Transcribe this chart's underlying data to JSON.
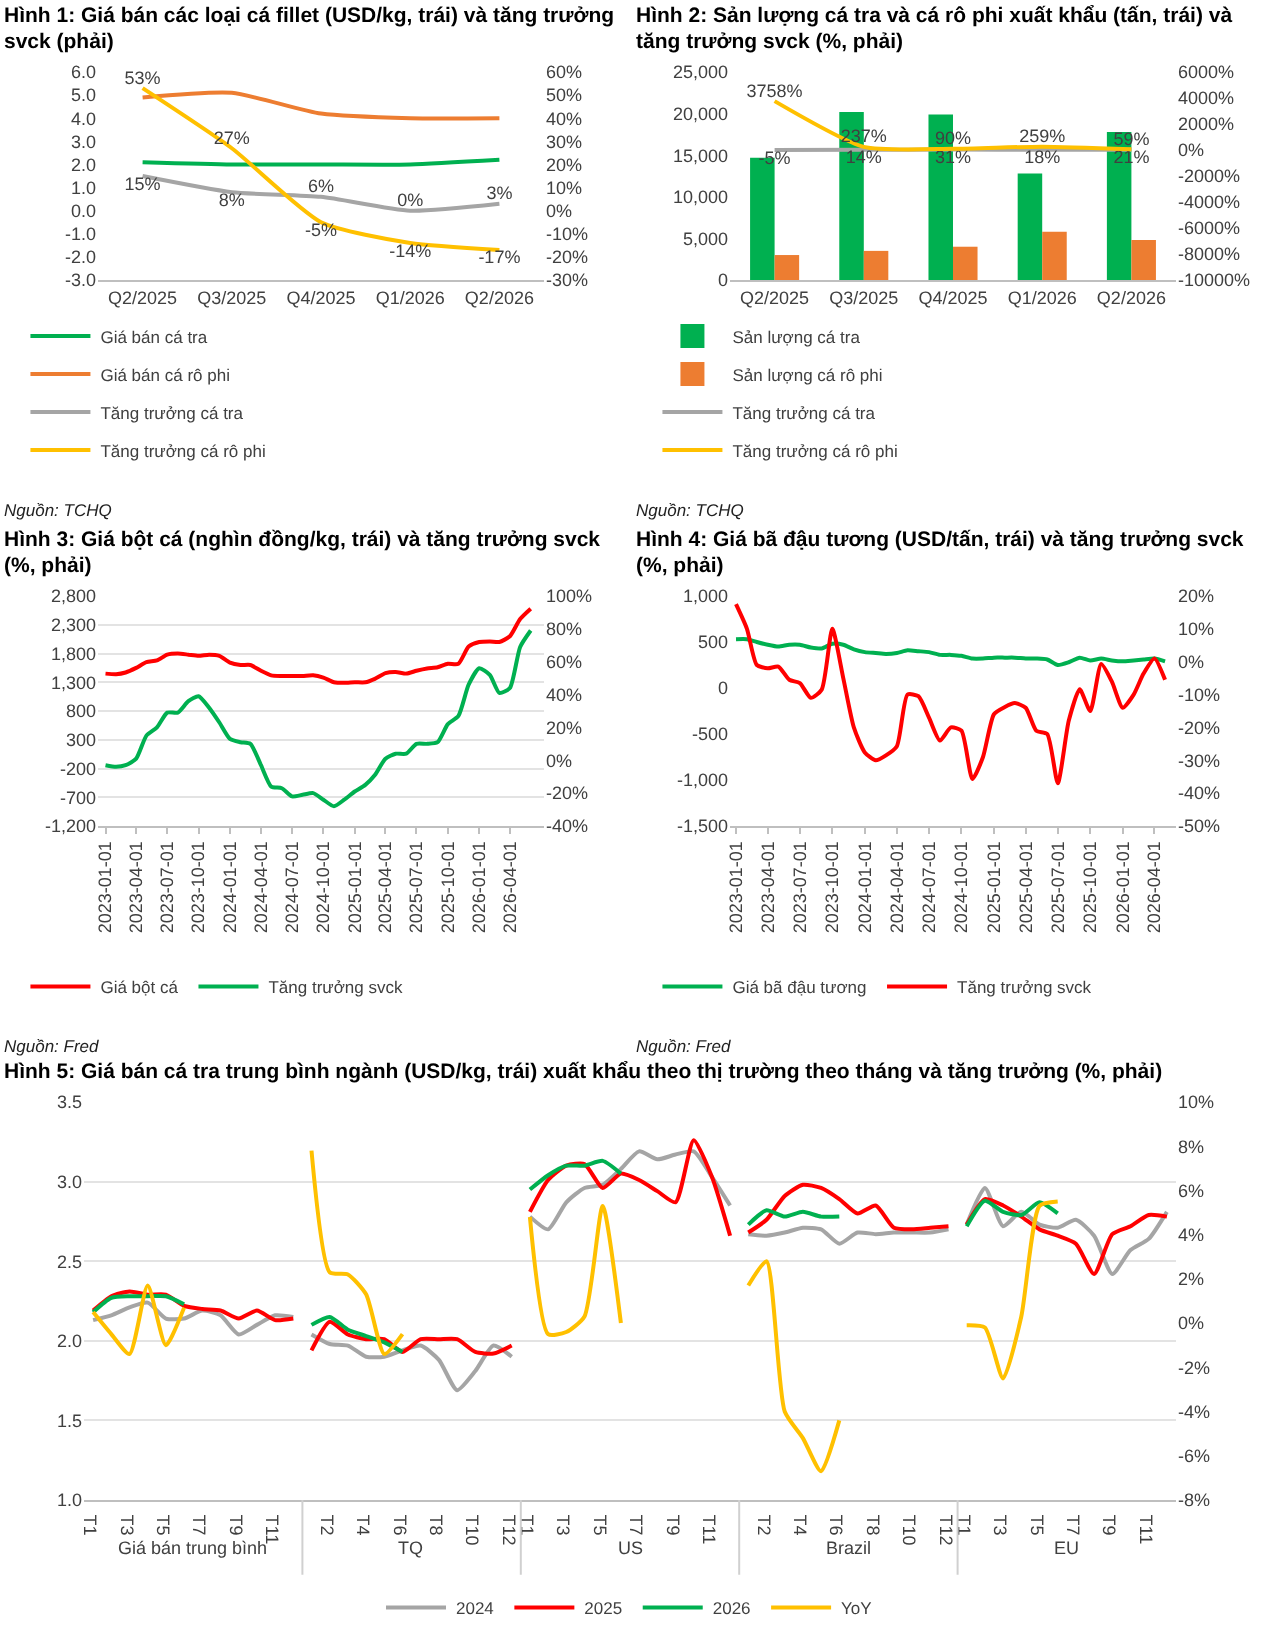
{
  "chart_data": [
    {
      "type": "line",
      "title": "Hình 1: Giá bán các loại cá fillet (USD/kg, trái) và tăng trưởng svck (phải)",
      "annotations": [
        "Nguồn: TCHQ"
      ],
      "categories": [
        "Q2/2025",
        "Q3/2025",
        "Q4/2025",
        "Q1/2026",
        "Q2/2026"
      ],
      "series": [
        {
          "name": "Giá bán cá tra",
          "color": "#00b050",
          "values": [
            2.1,
            2.0,
            2.0,
            2.0,
            2.2
          ]
        },
        {
          "name": "Giá bán cá rô phi",
          "color": "#ed7d31",
          "values": [
            4.9,
            5.1,
            4.2,
            4.0,
            4.0
          ]
        },
        {
          "name": "Tăng trưởng cá tra",
          "color": "#a5a5a5",
          "axis": "y2",
          "values": [
            15,
            8,
            6,
            0,
            3
          ],
          "value_labels": [
            "15%",
            "8%",
            "6%",
            "0%",
            "3%"
          ]
        },
        {
          "name": "Tăng trưởng cá rô phi",
          "color": "#ffc000",
          "axis": "y2",
          "values": [
            53,
            27,
            -5,
            -14,
            -17
          ],
          "value_labels": [
            "53%",
            "27%",
            "-5%",
            "-14%",
            "-17%"
          ]
        }
      ],
      "ylim": [
        -3,
        6
      ],
      "yticks": [
        {
          "value": -3,
          "label": "-3.0"
        },
        {
          "value": -2,
          "label": "-2.0"
        },
        {
          "value": -1,
          "label": "-1.0"
        },
        {
          "value": 0,
          "label": "0.0"
        },
        {
          "value": 1,
          "label": "1.0"
        },
        {
          "value": 2,
          "label": "2.0"
        },
        {
          "value": 3,
          "label": "3.0"
        },
        {
          "value": 4,
          "label": "4.0"
        },
        {
          "value": 5,
          "label": "5.0"
        },
        {
          "value": 6,
          "label": "6.0"
        }
      ],
      "y2lim": [
        -30,
        60
      ],
      "y2ticks": [
        {
          "value": -30,
          "label": "-30%"
        },
        {
          "value": -20,
          "label": "-20%"
        },
        {
          "value": -10,
          "label": "-10%"
        },
        {
          "value": 0,
          "label": "0%"
        },
        {
          "value": 10,
          "label": "10%"
        },
        {
          "value": 20,
          "label": "20%"
        },
        {
          "value": 30,
          "label": "30%"
        },
        {
          "value": 40,
          "label": "40%"
        },
        {
          "value": 50,
          "label": "50%"
        },
        {
          "value": 60,
          "label": "60%"
        }
      ],
      "legend": "bottom"
    },
    {
      "type": "bar",
      "title": "Hình 2: Sản lượng cá tra và cá rô phi xuất khẩu (tấn, trái) và tăng trưởng svck (%, phải)",
      "annotations": [
        "Nguồn: TCHQ"
      ],
      "categories": [
        "Q2/2025",
        "Q3/2025",
        "Q4/2025",
        "Q1/2026",
        "Q2/2026"
      ],
      "series": [
        {
          "name": "Sản lượng cá tra",
          "color": "#00b050",
          "values": [
            14700,
            20200,
            19900,
            12800,
            17800
          ]
        },
        {
          "name": "Sản lượng cá rô phi",
          "color": "#ed7d31",
          "values": [
            3000,
            3500,
            4000,
            5800,
            4800
          ]
        },
        {
          "name": "Tăng trưởng cá tra",
          "type": "line",
          "color": "#a5a5a5",
          "axis": "y2",
          "values": [
            -5,
            14,
            31,
            18,
            21
          ],
          "value_labels": [
            "-5%",
            "14%",
            "31%",
            "18%",
            "21%"
          ]
        },
        {
          "name": "Tăng trưởng cá rô phi",
          "type": "line",
          "color": "#ffc000",
          "axis": "y2",
          "values": [
            3758,
            237,
            90,
            259,
            59
          ],
          "value_labels": [
            "3758%",
            "237%",
            "90%",
            "259%",
            "59%"
          ]
        }
      ],
      "ylim": [
        0,
        25000
      ],
      "yticks": [
        0,
        {
          "value": 5000,
          "label": "5,000"
        },
        {
          "value": 10000,
          "label": "10,000"
        },
        {
          "value": 15000,
          "label": "15,000"
        },
        {
          "value": 20000,
          "label": "20,000"
        },
        {
          "value": 25000,
          "label": "25,000"
        }
      ],
      "y2lim": [
        -10000,
        6000
      ],
      "y2ticks": [
        {
          "value": -10000,
          "label": "-10000%"
        },
        {
          "value": -8000,
          "label": "-8000%"
        },
        {
          "value": -6000,
          "label": "-6000%"
        },
        {
          "value": -4000,
          "label": "-4000%"
        },
        {
          "value": -2000,
          "label": "-2000%"
        },
        {
          "value": 0,
          "label": "0%"
        },
        {
          "value": 2000,
          "label": "2000%"
        },
        {
          "value": 4000,
          "label": "4000%"
        },
        {
          "value": 6000,
          "label": "6000%"
        }
      ],
      "legend": "bottom"
    },
    {
      "type": "line",
      "title": "Hình 3: Giá bột cá (nghìn đồng/kg, trái) và tăng trưởng svck (%, phải)",
      "annotations": [
        "Nguồn: Fred"
      ],
      "x": [
        "2023-01",
        "2023-02",
        "2023-03",
        "2023-04",
        "2023-05",
        "2023-06",
        "2023-07",
        "2023-08",
        "2023-09",
        "2023-10",
        "2023-11",
        "2023-12",
        "2024-01",
        "2024-02",
        "2024-03",
        "2024-04",
        "2024-05",
        "2024-06",
        "2024-07",
        "2024-08",
        "2024-09",
        "2024-10",
        "2024-11",
        "2024-12",
        "2025-01",
        "2025-02",
        "2025-03",
        "2025-04",
        "2025-05",
        "2025-06",
        "2025-07",
        "2025-08",
        "2025-09",
        "2025-10",
        "2025-11",
        "2025-12",
        "2026-01",
        "2026-02",
        "2026-03",
        "2026-04",
        "2026-05",
        "2026-06"
      ],
      "series": [
        {
          "name": "Giá bột cá",
          "color": "#ff0000",
          "values": [
            1450,
            1440,
            1470,
            1550,
            1650,
            1680,
            1780,
            1800,
            1780,
            1760,
            1780,
            1760,
            1640,
            1600,
            1600,
            1500,
            1420,
            1410,
            1410,
            1410,
            1420,
            1380,
            1300,
            1290,
            1300,
            1300,
            1360,
            1460,
            1480,
            1450,
            1500,
            1540,
            1560,
            1620,
            1620,
            1920,
            2000,
            2010,
            2000,
            2100,
            2400,
            2580
          ]
        },
        {
          "name": "Tăng trưởng svck",
          "color": "#00b050",
          "axis": "y2",
          "values": [
            -3,
            -4,
            -3,
            1,
            15,
            20,
            29,
            29,
            36,
            39,
            32,
            23,
            13,
            11,
            10,
            -3,
            -16,
            -17,
            -22,
            -21,
            -20,
            -24,
            -28,
            -24,
            -19,
            -15,
            -9,
            1,
            4,
            4,
            10,
            10,
            11,
            22,
            27,
            46,
            56,
            52,
            41,
            44,
            69,
            79
          ]
        }
      ],
      "xlim": [
        "2022-12-10",
        "2026-07-10"
      ],
      "xticks": [
        "2023-01-01",
        "2023-04-01",
        "2023-07-01",
        "2023-10-01",
        "2024-01-01",
        "2024-04-01",
        "2024-07-01",
        "2024-10-01",
        "2025-01-01",
        "2025-04-01",
        "2025-07-01",
        "2025-10-01",
        "2026-01-01",
        "2026-04-01"
      ],
      "ylim": [
        -1200,
        2800
      ],
      "yticks": [
        {
          "value": -1200,
          "label": "-1,200"
        },
        -700,
        -200,
        300,
        800,
        {
          "value": 1300,
          "label": "1,300"
        },
        {
          "value": 1800,
          "label": "1,800"
        },
        {
          "value": 2300,
          "label": "2,300"
        },
        {
          "value": 2800,
          "label": "2,800"
        }
      ],
      "y2lim": [
        -40,
        100
      ],
      "y2ticks": [
        {
          "value": -40,
          "label": "-40%"
        },
        {
          "value": -20,
          "label": "-20%"
        },
        {
          "value": 0,
          "label": "0%"
        },
        {
          "value": 20,
          "label": "20%"
        },
        {
          "value": 40,
          "label": "40%"
        },
        {
          "value": 60,
          "label": "60%"
        },
        {
          "value": 80,
          "label": "80%"
        },
        {
          "value": 100,
          "label": "100%"
        }
      ],
      "grid": "y",
      "legend": "bottom"
    },
    {
      "type": "line",
      "title": "Hình 4: Giá bã đậu tương (USD/tấn, trái) và tăng trưởng svck (%, phải)",
      "annotations": [
        "Nguồn: Fred"
      ],
      "x": [
        "2023-01",
        "2023-02",
        "2023-03",
        "2023-04",
        "2023-05",
        "2023-06",
        "2023-07",
        "2023-08",
        "2023-09",
        "2023-10",
        "2023-11",
        "2023-12",
        "2024-01",
        "2024-02",
        "2024-03",
        "2024-04",
        "2024-05",
        "2024-06",
        "2024-07",
        "2024-08",
        "2024-09",
        "2024-10",
        "2024-11",
        "2024-12",
        "2025-01",
        "2025-02",
        "2025-03",
        "2025-04",
        "2025-05",
        "2025-06",
        "2025-07",
        "2025-08",
        "2025-09",
        "2025-10",
        "2025-11",
        "2025-12",
        "2026-01",
        "2026-02",
        "2026-03",
        "2026-04",
        "2026-05"
      ],
      "series": [
        {
          "name": "Giá bã đậu tương",
          "color": "#00b050",
          "values": [
            530,
            530,
            500,
            470,
            450,
            470,
            470,
            440,
            430,
            480,
            470,
            420,
            390,
            380,
            370,
            380,
            410,
            400,
            390,
            360,
            360,
            350,
            320,
            320,
            330,
            330,
            330,
            320,
            320,
            310,
            250,
            280,
            330,
            300,
            320,
            300,
            290,
            300,
            310,
            320,
            290
          ]
        },
        {
          "name": "Tăng trưởng svck",
          "color": "#ff0000",
          "axis": "y2",
          "values": [
            17.5,
            10,
            -1,
            -2,
            -1.5,
            -5.5,
            -6.5,
            -11,
            -8.5,
            10,
            -5,
            -20,
            -27.6,
            -30,
            -28.5,
            -25.7,
            -10,
            -10.5,
            -17,
            -24,
            -20,
            -21,
            -35.7,
            -29,
            -16,
            -13.8,
            -12.6,
            -14,
            -21,
            -22,
            -37,
            -18,
            -8.4,
            -15,
            -0.7,
            -6,
            -14,
            -10,
            -3.6,
            1,
            -5.5
          ]
        }
      ],
      "xlim": [
        "2022-12-15",
        "2026-06-01"
      ],
      "xticks": [
        "2023-01-01",
        "2023-04-01",
        "2023-07-01",
        "2023-10-01",
        "2024-01-01",
        "2024-04-01",
        "2024-07-01",
        "2024-10-01",
        "2025-01-01",
        "2025-04-01",
        "2025-07-01",
        "2025-10-01",
        "2026-01-01",
        "2026-04-01"
      ],
      "ylim": [
        -1500,
        1000
      ],
      "yticks": [
        {
          "value": -1500,
          "label": "-1,500"
        },
        {
          "value": -1000,
          "label": "-1,000"
        },
        -500,
        0,
        500,
        {
          "value": 1000,
          "label": "1,000"
        }
      ],
      "y2lim": [
        -50,
        20
      ],
      "y2ticks": [
        {
          "value": -50,
          "label": "-50%"
        },
        {
          "value": -40,
          "label": "-40%"
        },
        {
          "value": -30,
          "label": "-30%"
        },
        {
          "value": -20,
          "label": "-20%"
        },
        {
          "value": -10,
          "label": "-10%"
        },
        {
          "value": 0,
          "label": "0%"
        },
        {
          "value": 10,
          "label": "10%"
        },
        {
          "value": 20,
          "label": "20%"
        }
      ],
      "legend": "bottom"
    },
    {
      "type": "line",
      "title": "Hình 5: Giá bán cá tra trung bình ngành (USD/kg, trái) xuất khẩu theo thị trường theo tháng và tăng trưởng (%, phải)",
      "annotations": [
        "Giá bán trung bình",
        "TQ",
        "US",
        "Brazil",
        "EU"
      ],
      "categories": [
        "T1",
        null,
        "T3",
        null,
        "T5",
        null,
        "T7",
        null,
        "T9",
        null,
        "T11",
        null,
        null,
        "T2",
        null,
        "T4",
        null,
        "T6",
        null,
        "T8",
        null,
        "T10",
        null,
        "T12",
        "T1",
        null,
        "T3",
        null,
        "T5",
        null,
        "T7",
        null,
        "T9",
        null,
        "T11",
        null,
        null,
        "T2",
        null,
        "T4",
        null,
        "T6",
        null,
        "T8",
        null,
        "T10",
        null,
        "T12",
        "T1",
        null,
        "T3",
        null,
        "T5",
        null,
        "T7",
        null,
        "T9",
        null,
        "T11",
        null
      ],
      "series": [
        {
          "name": "2024",
          "color": "#a5a5a5",
          "values": [
            2.13,
            2.16,
            2.21,
            2.24,
            2.14,
            2.14,
            2.19,
            2.16,
            2.04,
            2.1,
            2.16,
            2.15,
            2.04,
            1.98,
            1.97,
            1.9,
            1.9,
            1.94,
            1.97,
            1.88,
            1.69,
            1.81,
            1.97,
            1.9,
            2.78,
            2.7,
            2.87,
            2.96,
            2.98,
            3.08,
            3.19,
            3.14,
            3.17,
            3.19,
            3.03,
            2.85,
            2.67,
            2.66,
            2.68,
            2.71,
            2.7,
            2.61,
            2.68,
            2.67,
            2.68,
            2.68,
            2.68,
            2.7,
            2.73,
            2.96,
            2.72,
            2.81,
            2.73,
            2.71,
            2.76,
            2.66,
            2.42,
            2.57,
            2.64,
            2.81
          ]
        },
        {
          "name": "2025",
          "color": "#ff0000",
          "values": [
            2.19,
            2.28,
            2.31,
            2.29,
            2.29,
            2.22,
            2.2,
            2.19,
            2.14,
            2.19,
            2.13,
            2.14,
            1.94,
            2.12,
            2.04,
            2.01,
            2.01,
            1.93,
            2.01,
            2.01,
            2.01,
            1.93,
            1.92,
            1.97,
            2.81,
            3.01,
            3.1,
            3.11,
            2.96,
            3.05,
            3.01,
            2.94,
            2.87,
            3.26,
            3.03,
            2.66,
            2.68,
            2.76,
            2.91,
            2.98,
            2.96,
            2.89,
            2.8,
            2.85,
            2.71,
            2.7,
            2.71,
            2.72,
            2.73,
            2.89,
            2.85,
            2.78,
            2.7,
            2.66,
            2.61,
            2.42,
            2.67,
            2.72,
            2.79,
            2.78
          ]
        },
        {
          "name": "2026",
          "color": "#00b050",
          "values": [
            2.18,
            2.27,
            2.28,
            2.28,
            2.28,
            2.23,
            null,
            null,
            null,
            null,
            null,
            null,
            2.1,
            2.15,
            2.07,
            2.03,
            1.99,
            1.93,
            null,
            null,
            null,
            null,
            null,
            null,
            2.95,
            3.04,
            3.1,
            3.1,
            3.13,
            3.05,
            null,
            null,
            null,
            null,
            null,
            null,
            2.73,
            2.82,
            2.78,
            2.81,
            2.78,
            2.78,
            null,
            null,
            null,
            null,
            null,
            null,
            2.72,
            2.88,
            2.81,
            2.79,
            2.87,
            2.8,
            null,
            null,
            null,
            null,
            null,
            null
          ]
        },
        {
          "name": "YoY",
          "color": "#ffc000",
          "axis": "y2",
          "values": [
            0.5,
            -0.5,
            -1.4,
            1.7,
            -1.0,
            0.7,
            null,
            null,
            null,
            null,
            null,
            null,
            7.8,
            2.3,
            2.2,
            1.3,
            -1.4,
            -0.5,
            null,
            null,
            null,
            null,
            null,
            null,
            4.8,
            -0.5,
            -0.4,
            0.3,
            5.3,
            0.0,
            null,
            null,
            null,
            null,
            null,
            null,
            1.7,
            2.8,
            -4.0,
            -5.2,
            -6.7,
            -4.4,
            null,
            null,
            null,
            null,
            null,
            null,
            -0.1,
            -0.2,
            -2.5,
            0.3,
            5.3,
            5.5,
            null,
            null,
            null,
            null,
            null,
            null
          ]
        }
      ],
      "ylim": [
        1,
        3.5
      ],
      "yticks": [
        {
          "value": 1,
          "label": "1.0"
        },
        1.5,
        {
          "value": 2,
          "label": "2.0"
        },
        2.5,
        {
          "value": 3,
          "label": "3.0"
        },
        3.5
      ],
      "y2lim": [
        -8,
        10
      ],
      "y2ticks": [
        {
          "value": -8,
          "label": "-8%"
        },
        {
          "value": -6,
          "label": "-6%"
        },
        {
          "value": -4,
          "label": "-4%"
        },
        {
          "value": -2,
          "label": "-2%"
        },
        {
          "value": 0,
          "label": "0%"
        },
        {
          "value": 2,
          "label": "2%"
        },
        {
          "value": 4,
          "label": "4%"
        },
        {
          "value": 6,
          "label": "6%"
        },
        {
          "value": 8,
          "label": "8%"
        },
        {
          "value": 10,
          "label": "10%"
        }
      ],
      "grid": "y",
      "legend": "bottom"
    }
  ]
}
